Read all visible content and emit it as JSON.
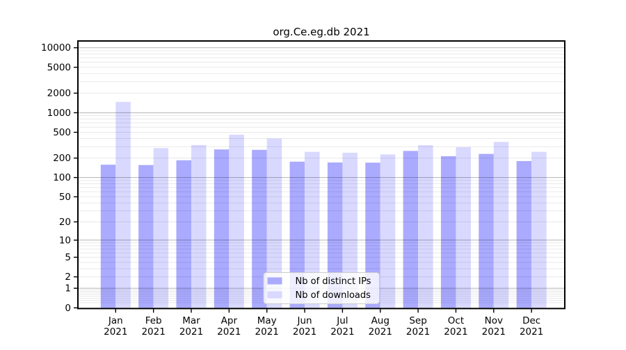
{
  "chart_data": {
    "type": "bar",
    "title": "org.Ce.eg.db 2021",
    "x_tick_year": "2021",
    "categories": [
      "Jan",
      "Feb",
      "Mar",
      "Apr",
      "May",
      "Jun",
      "Jul",
      "Aug",
      "Sep",
      "Oct",
      "Nov",
      "Dec"
    ],
    "series": [
      {
        "name": "Nb of distinct IPs",
        "color": "#aaaaff",
        "values": [
          158,
          156,
          185,
          272,
          268,
          176,
          171,
          170,
          258,
          214,
          232,
          180
        ]
      },
      {
        "name": "Nb of downloads",
        "color": "#d9d9ff",
        "values": [
          1470,
          285,
          318,
          460,
          400,
          250,
          242,
          228,
          316,
          295,
          355,
          250
        ]
      }
    ],
    "y_scale": "log10(1+x)",
    "y_ticks": [
      0,
      1,
      2,
      5,
      10,
      20,
      50,
      100,
      200,
      500,
      1000,
      2000,
      5000,
      10000
    ],
    "ylim": [
      0,
      12400
    ],
    "grid": "on",
    "legend_position": "lower center",
    "colors": {
      "grid_major": "#b3b3b3",
      "grid_minor": "#e8e8e8",
      "axis": "#000000",
      "legend_border": "#cccccc",
      "legend_background": "rgba(255,255,255,0.8)"
    }
  }
}
